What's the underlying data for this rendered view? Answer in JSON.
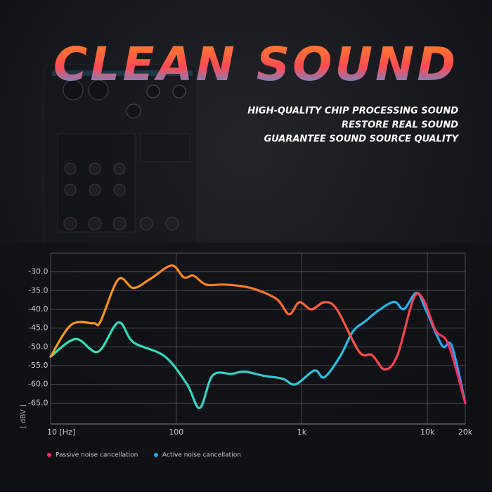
{
  "chart_data": {
    "type": "line",
    "title": "CLEAN SOUND",
    "subtitle": [
      "HIGH-QUALITY CHIP PROCESSING SOUND",
      "RESTORE REAL SOUND",
      "GUARANTEE SOUND SOURCE QUALITY"
    ],
    "y_label": "[ dBV ]",
    "log_x": true,
    "grid": true,
    "xlim": [
      10,
      20000
    ],
    "xticks": [
      {
        "value": 10,
        "label": "10 [Hz]"
      },
      100,
      {
        "value": 1000,
        "label": "1k"
      },
      {
        "value": 10000,
        "label": "10k"
      },
      {
        "value": 20000,
        "label": "20k"
      }
    ],
    "ylim": [
      -70,
      -25
    ],
    "yticks": [
      {
        "value": -30,
        "label": "-30.0"
      },
      {
        "value": -35,
        "label": "-35.0"
      },
      {
        "value": -40,
        "label": "-40.0"
      },
      {
        "value": -45,
        "label": "-45.0"
      },
      {
        "value": -50,
        "label": "-50.0"
      },
      {
        "value": -55,
        "label": "-55.0"
      },
      {
        "value": -60,
        "label": "-60.0"
      },
      {
        "value": -65,
        "label": "-65.0"
      }
    ],
    "series": [
      {
        "name": "Passive noise cancellation",
        "color": "#ff2d5f",
        "x": [
          10,
          14.6,
          21.9,
          24.9,
          34.6,
          45.7,
          63.3,
          92.2,
          115,
          137,
          173,
          246,
          393,
          627,
          791,
          955,
          1190,
          1510,
          1900,
          2860,
          3620,
          4570,
          5770,
          7730,
          9210,
          11600,
          14700,
          20000
        ],
        "values": [
          -52.6,
          -44.1,
          -43.7,
          -43.3,
          -32.0,
          -34.3,
          -31.7,
          -28.3,
          -31.5,
          -31.0,
          -33.4,
          -33.4,
          -34.3,
          -37.2,
          -41.3,
          -38.1,
          -40.0,
          -38.1,
          -40.0,
          -51.3,
          -52.2,
          -56.0,
          -52.2,
          -37.2,
          -37.2,
          -45.6,
          -49.4,
          -65.0
        ]
      },
      {
        "name": "Active noise cancellation",
        "color": "#1fa8ff",
        "x": [
          10,
          15.8,
          23.8,
          34.6,
          45.7,
          80.9,
          122,
          154,
          195,
          277,
          349,
          496,
          705,
          889,
          1260,
          1510,
          2020,
          2550,
          3220,
          4070,
          5440,
          6490,
          8200,
          9770,
          13100,
          15600,
          20000
        ],
        "values": [
          -52.6,
          -47.9,
          -51.3,
          -43.5,
          -48.8,
          -52.5,
          -60.0,
          -66.3,
          -57.6,
          -57.2,
          -56.6,
          -57.7,
          -58.5,
          -60.0,
          -56.3,
          -58.1,
          -52.5,
          -45.9,
          -43.1,
          -40.3,
          -38.0,
          -39.9,
          -35.6,
          -40.3,
          -49.7,
          -49.7,
          -65.0
        ]
      }
    ]
  }
}
